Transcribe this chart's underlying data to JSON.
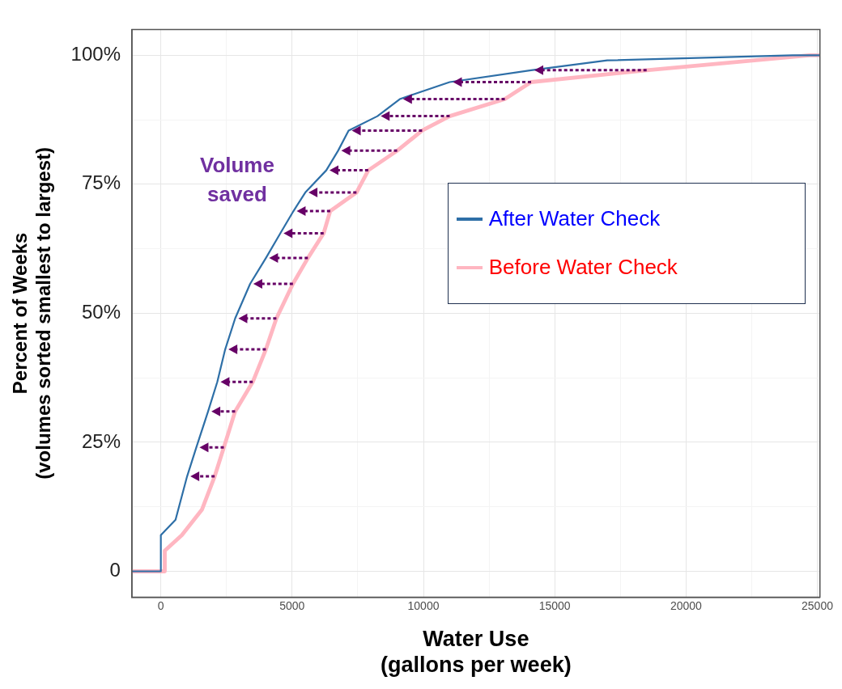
{
  "chart_data": {
    "type": "line",
    "xlabel": "Water Use\n(gallons per week)",
    "ylabel": "Percent of Weeks\n(volumes sorted smallest to largest)",
    "xlim": [
      -1100,
      25100
    ],
    "ylim": [
      -5,
      105
    ],
    "xticks": [
      0,
      {
        "value": 2500,
        "label": null
      },
      5000,
      {
        "value": 7500,
        "label": null
      },
      10000,
      {
        "value": 12500,
        "label": null
      },
      15000,
      {
        "value": 17500,
        "label": null
      },
      20000,
      {
        "value": 22500,
        "label": null
      },
      25000
    ],
    "yticks": [
      {
        "value": 0,
        "label": "0"
      },
      {
        "value": 12.5,
        "label": null
      },
      {
        "value": 25,
        "label": "25%"
      },
      {
        "value": 37.5,
        "label": null
      },
      {
        "value": 50,
        "label": "50%"
      },
      {
        "value": 62.5,
        "label": null
      },
      {
        "value": 75,
        "label": "75%"
      },
      {
        "value": 87.5,
        "label": null
      },
      {
        "value": 100,
        "label": "100%"
      }
    ],
    "grid": true,
    "legend": "right",
    "marker": "none",
    "line_style": "solid",
    "annotations": [
      "Volume saved"
    ],
    "series": [
      {
        "name": "After Water Check",
        "color": "#2e6fa7",
        "x": [
          -1100,
          0,
          0,
          560,
          1000,
          1350,
          1800,
          2150,
          2450,
          2830,
          3400,
          4000,
          4550,
          5050,
          5500,
          6300,
          6750,
          7150,
          8250,
          9100,
          11000,
          14100,
          17000,
          24050,
          25100
        ],
        "values": [
          0,
          0,
          7,
          10,
          18.4,
          24,
          31,
          36.7,
          43,
          49,
          55.7,
          60.7,
          65.5,
          69.8,
          73.4,
          77.7,
          81.5,
          85.4,
          88.2,
          91.5,
          94.8,
          97.1,
          99,
          100,
          100
        ]
      },
      {
        "name": "Before Water Check",
        "color": "#ffb6c1",
        "x": [
          -1100,
          150,
          150,
          800,
          1570,
          2050,
          2400,
          2830,
          3500,
          4000,
          4400,
          5030,
          5600,
          6200,
          6450,
          7450,
          7900,
          9000,
          9950,
          11000,
          13100,
          14100,
          18500,
          24700,
          25100
        ],
        "values": [
          0,
          0,
          4,
          7,
          12,
          18.4,
          24,
          31,
          36.7,
          43,
          49,
          55.7,
          60.7,
          65.5,
          69.8,
          73.4,
          77.7,
          81.5,
          85.4,
          88.2,
          91.5,
          94.8,
          97.1,
          100,
          100
        ]
      }
    ]
  }
}
